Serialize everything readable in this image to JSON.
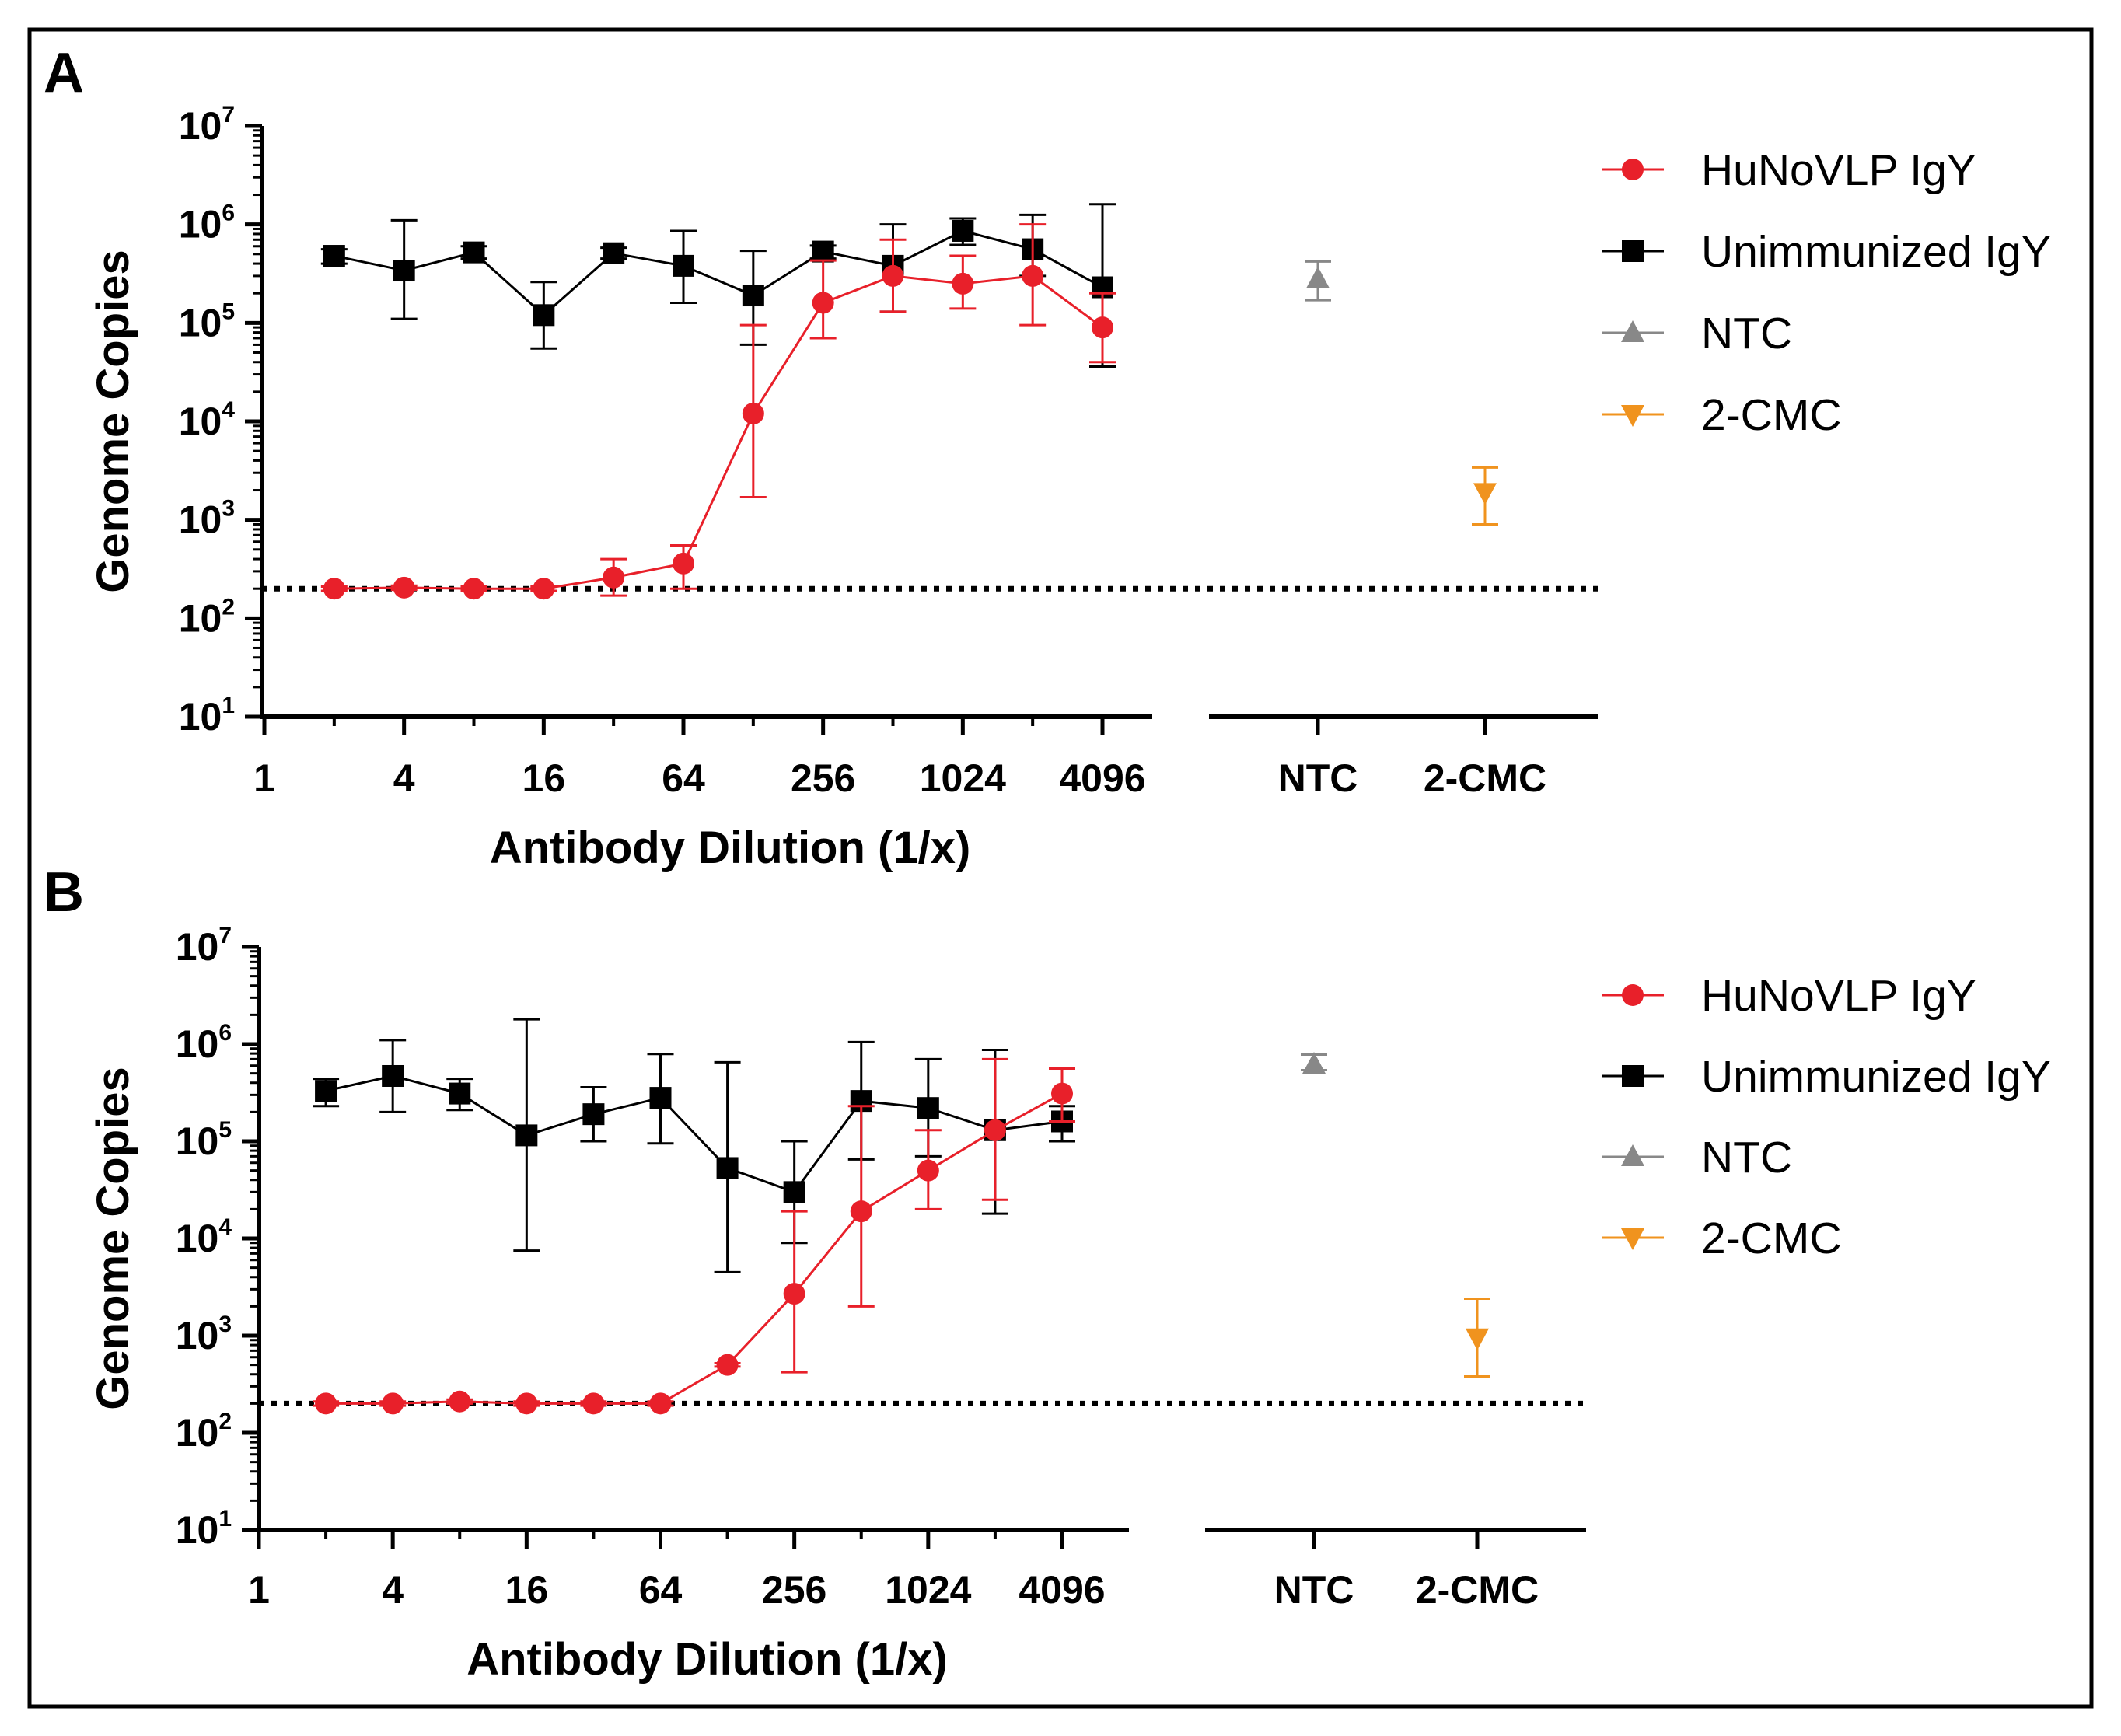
{
  "chart_data": [
    {
      "panel": "A",
      "type": "line",
      "xscale": "log2",
      "yscale": "log10",
      "xlabel": "Antibody Dilution (1/x)",
      "ylabel": "Genome Copies",
      "x_ticks": [
        "1",
        "4",
        "16",
        "64",
        "256",
        "1024",
        "4096"
      ],
      "y_ticks": [
        {
          "base": "10",
          "exp": "1"
        },
        {
          "base": "10",
          "exp": "2"
        },
        {
          "base": "10",
          "exp": "3"
        },
        {
          "base": "10",
          "exp": "4"
        },
        {
          "base": "10",
          "exp": "5"
        },
        {
          "base": "10",
          "exp": "6"
        },
        {
          "base": "10",
          "exp": "7"
        }
      ],
      "ylim": [
        10,
        10000000
      ],
      "limit_of_detection": 200,
      "series": [
        {
          "name": "HuNoVLP IgY",
          "color": "#e8202a",
          "marker": "circle",
          "x": [
            2,
            4,
            8,
            16,
            32,
            64,
            128,
            256,
            512,
            1024,
            2048,
            4096
          ],
          "y": [
            200,
            205,
            200,
            200,
            260,
            360,
            12000,
            160000,
            300000,
            250000,
            300000,
            90000
          ],
          "err_low": [
            190,
            195,
            190,
            190,
            170,
            200,
            1700,
            70000,
            130000,
            140000,
            95000,
            40000
          ],
          "err_high": [
            210,
            215,
            210,
            210,
            400,
            550,
            95000,
            430000,
            700000,
            480000,
            1000000,
            200000
          ]
        },
        {
          "name": "Unimmunized IgY",
          "color": "#000000",
          "marker": "square",
          "x": [
            2,
            4,
            8,
            16,
            32,
            64,
            128,
            256,
            512,
            1024,
            2048,
            4096
          ],
          "y": [
            480000,
            340000,
            520000,
            120000,
            510000,
            380000,
            190000,
            530000,
            380000,
            860000,
            560000,
            230000
          ],
          "err_low": [
            400000,
            110000,
            450000,
            55000,
            450000,
            160000,
            60000,
            450000,
            130000,
            620000,
            300000,
            36000
          ],
          "err_high": [
            560000,
            1100000,
            600000,
            260000,
            580000,
            860000,
            540000,
            610000,
            1000000,
            1150000,
            1250000,
            1600000
          ]
        }
      ],
      "controls": [
        {
          "name": "NTC",
          "color": "#888888",
          "marker": "triangle-up",
          "y": 280000,
          "err_low": 170000,
          "err_high": 420000
        },
        {
          "name": "2-CMC",
          "color": "#f0931e",
          "marker": "triangle-down",
          "y": 1900,
          "err_low": 900,
          "err_high": 3400
        }
      ],
      "control_ticks": [
        "NTC",
        "2-CMC"
      ]
    },
    {
      "panel": "B",
      "type": "line",
      "xscale": "log2",
      "yscale": "log10",
      "xlabel": "Antibody Dilution (1/x)",
      "ylabel": "Genome Copies",
      "x_ticks": [
        "1",
        "4",
        "16",
        "64",
        "256",
        "1024",
        "4096"
      ],
      "y_ticks": [
        {
          "base": "10",
          "exp": "1"
        },
        {
          "base": "10",
          "exp": "2"
        },
        {
          "base": "10",
          "exp": "3"
        },
        {
          "base": "10",
          "exp": "4"
        },
        {
          "base": "10",
          "exp": "5"
        },
        {
          "base": "10",
          "exp": "6"
        },
        {
          "base": "10",
          "exp": "7"
        }
      ],
      "ylim": [
        10,
        10000000
      ],
      "limit_of_detection": 200,
      "series": [
        {
          "name": "HuNoVLP IgY",
          "color": "#e8202a",
          "marker": "circle",
          "x": [
            2,
            4,
            8,
            16,
            32,
            64,
            128,
            256,
            512,
            1024,
            2048,
            4096
          ],
          "y": [
            200,
            200,
            210,
            200,
            200,
            200,
            500,
            2700,
            19000,
            50000,
            130000,
            310000
          ],
          "err_low": [
            190,
            190,
            200,
            190,
            190,
            190,
            480,
            420,
            2000,
            20000,
            25000,
            160000
          ],
          "err_high": [
            210,
            210,
            220,
            210,
            210,
            210,
            520,
            19000,
            230000,
            130000,
            700000,
            560000
          ]
        },
        {
          "name": "Unimmunized IgY",
          "color": "#000000",
          "marker": "square",
          "x": [
            2,
            4,
            8,
            16,
            32,
            64,
            128,
            256,
            512,
            1024,
            2048,
            4096
          ],
          "y": [
            330000,
            470000,
            310000,
            115000,
            190000,
            280000,
            53000,
            30000,
            260000,
            220000,
            130000,
            160000
          ],
          "err_low": [
            230000,
            200000,
            210000,
            7500,
            100000,
            95000,
            4500,
            9000,
            65000,
            70000,
            18000,
            100000
          ],
          "err_high": [
            440000,
            1100000,
            440000,
            1800000,
            360000,
            790000,
            650000,
            100000,
            1050000,
            700000,
            870000,
            230000
          ]
        }
      ],
      "controls": [
        {
          "name": "NTC",
          "color": "#888888",
          "marker": "triangle-up",
          "y": 620000,
          "err_low": 540000,
          "err_high": 780000
        },
        {
          "name": "2-CMC",
          "color": "#f0931e",
          "marker": "triangle-down",
          "y": 950,
          "err_low": 380,
          "err_high": 2400
        }
      ],
      "control_ticks": [
        "NTC",
        "2-CMC"
      ]
    }
  ]
}
